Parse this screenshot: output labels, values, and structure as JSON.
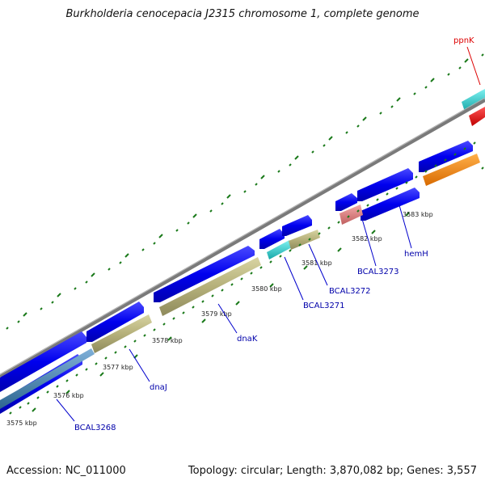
{
  "title": "Burkholderia cenocepacia J2315 chromosome 1, complete genome",
  "footer": {
    "accession": "Accession: NC_011000",
    "summary": "Topology: circular; Length: 3,870,082 bp; Genes: 3,557"
  },
  "scale": {
    "ticks": [
      "3575 kbp",
      "3576 kbp",
      "3577 kbp",
      "3578 kbp",
      "3579 kbp",
      "3580 kbp",
      "3581 kbp",
      "3582 kbp",
      "3583 kbp"
    ]
  },
  "labels": {
    "ppnK": "ppnK",
    "BCAL3268": "BCAL3268",
    "dnaJ": "dnaJ",
    "dnaK": "dnaK",
    "BCAL3271": "BCAL3271",
    "BCAL3272": "BCAL3272",
    "BCAL3273": "BCAL3273",
    "hemH": "hemH"
  },
  "colors": {
    "cds_blue": "#0000ee",
    "gene_khaki": "#b5b07a",
    "cyan": "#22cccc",
    "red": "#ee0000",
    "orange": "#ff8800",
    "pink": "#e08080",
    "steel_blue": "#4682b4",
    "backbone": "#888888",
    "tick_green": "#1a7a1a",
    "label_blue": "#0000aa",
    "label_red": "#dd0000"
  }
}
